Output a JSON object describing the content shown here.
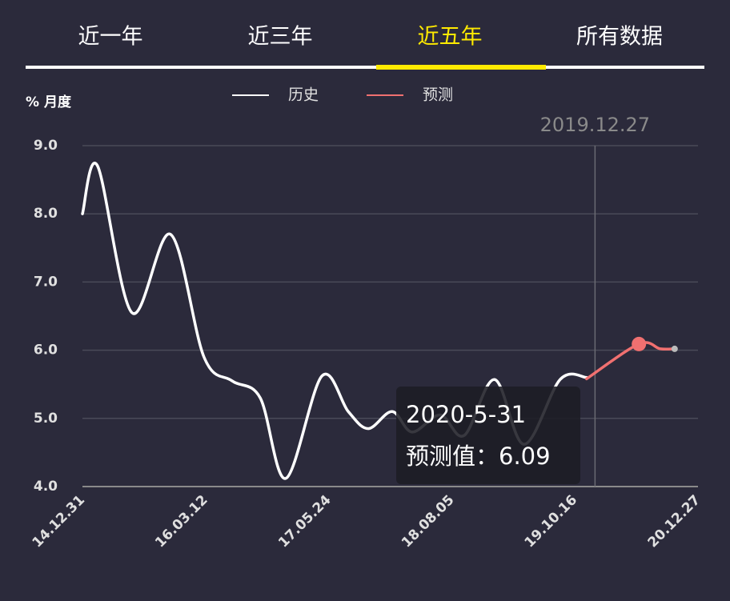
{
  "tabs": [
    "近一年",
    "近三年",
    "近五年",
    "所有数据"
  ],
  "selected_tab": 2,
  "chart_data": {
    "type": "line",
    "y_label": "% 月度",
    "series": [
      {
        "name": "历史",
        "color": "#ffffff",
        "x": [
          "14.12.31",
          "15.02.23",
          "15.06.25",
          "15.11.09",
          "16.03.07",
          "16.06.15",
          "16.09.23",
          "16.12.23",
          "17.04.30",
          "17.08.02",
          "17.10.12",
          "18.01.05",
          "18.03.17",
          "18.06.25",
          "18.09.18",
          "19.01.04",
          "19.04.19",
          "19.08.25",
          "19.11.27"
        ],
        "values": [
          8.0,
          8.7,
          6.55,
          7.7,
          5.9,
          5.55,
          5.3,
          4.12,
          5.62,
          5.1,
          4.85,
          5.1,
          4.8,
          5.05,
          4.75,
          5.57,
          4.62,
          5.57,
          5.6
        ]
      },
      {
        "name": "预测",
        "color": "#f07070",
        "x": [
          "19.11.27",
          "20.05.31",
          "20.08.15",
          "20.10.05"
        ],
        "values": [
          5.58,
          6.09,
          6.02,
          6.02
        ]
      }
    ],
    "xlim": [
      "14.12.31",
      "20.12.27"
    ],
    "xticks": [
      "14.12.31",
      "16.03.12",
      "17.05.24",
      "18.08.05",
      "19.10.16",
      "20.12.27"
    ],
    "ylim": [
      4.0,
      9.0
    ],
    "yticks": [
      {
        "value": 4,
        "label": "4.0"
      },
      {
        "value": 5,
        "label": "5.0"
      },
      {
        "value": 6,
        "label": "6.0"
      },
      {
        "value": 7,
        "label": "7.0"
      },
      {
        "value": 8,
        "label": "8.0"
      },
      {
        "value": 9,
        "label": "9.0"
      }
    ],
    "grid": true,
    "marker_line": "2019.12.27",
    "tooltip": {
      "title": "2020-5-31",
      "label": "预测值："
    }
  }
}
